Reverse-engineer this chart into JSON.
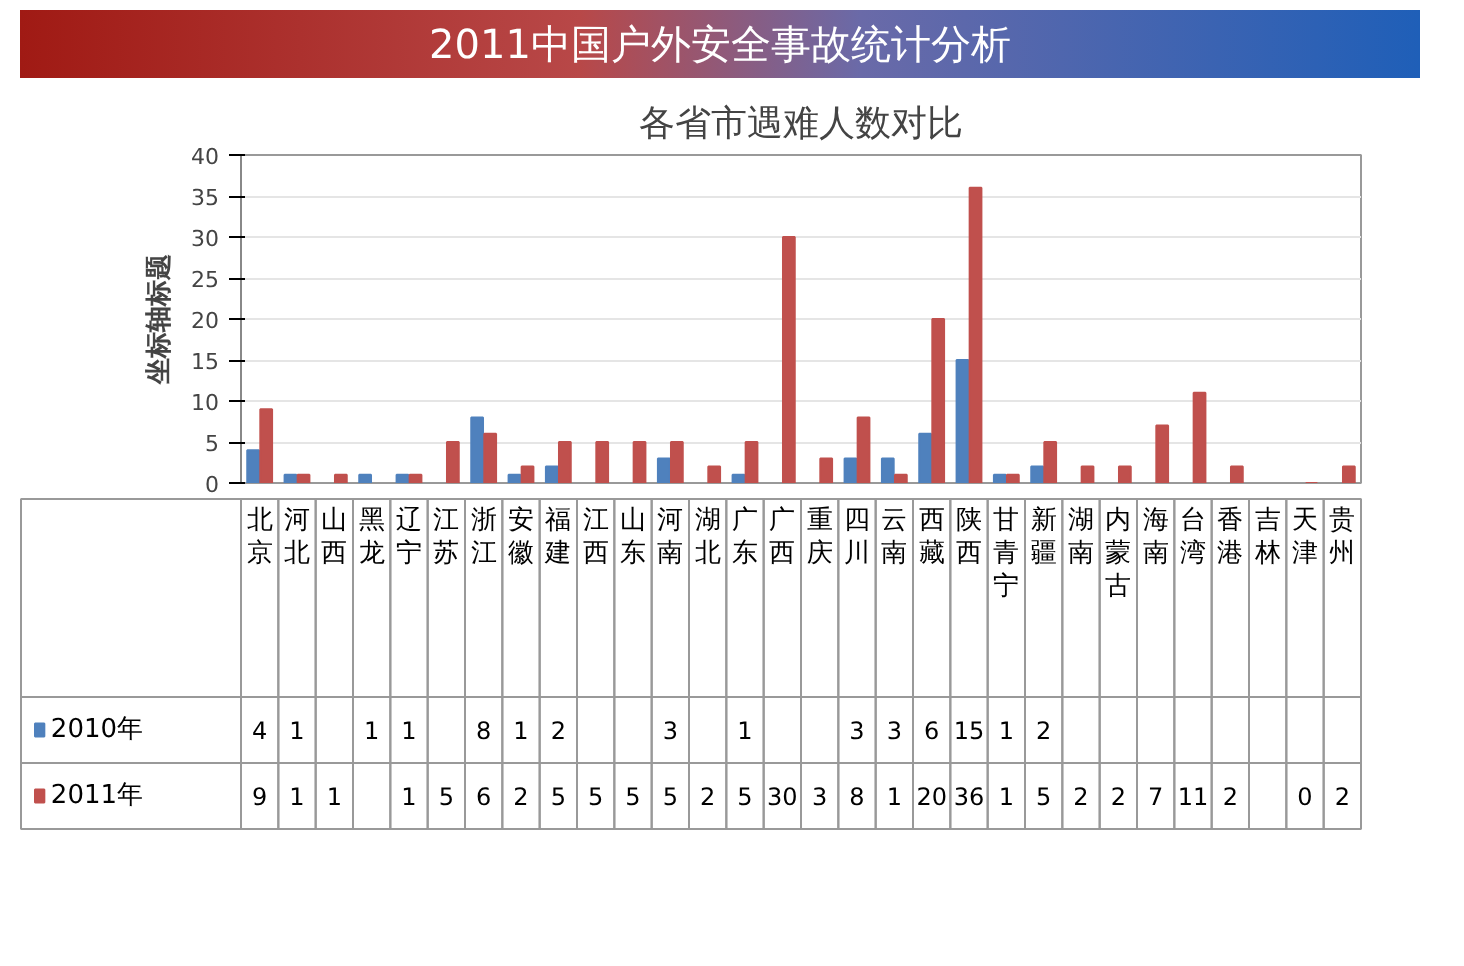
{
  "chart_data": {
    "type": "bar",
    "title": "2011中国户外安全事故统计分析",
    "subtitle": "各省市遇难人数对比",
    "ylabel": "坐标轴标题",
    "categories": [
      "北京",
      "河北",
      "山西",
      "黑龙",
      "辽宁",
      "江苏",
      "浙江",
      "安徽",
      "福建",
      "江西",
      "山东",
      "河南",
      "湖北",
      "广东",
      "广西",
      "重庆",
      "四川",
      "云南",
      "西藏",
      "陕西",
      "甘青宁",
      "新疆",
      "湖南",
      "内蒙古",
      "海南",
      "台湾",
      "香港",
      "吉林",
      "天津",
      "贵州"
    ],
    "series": [
      {
        "name": "2010年",
        "color": "#4f81bd",
        "values": [
          4,
          1,
          null,
          1,
          1,
          null,
          8,
          1,
          2,
          null,
          null,
          3,
          null,
          1,
          null,
          null,
          3,
          3,
          6,
          15,
          1,
          2,
          null,
          null,
          null,
          null,
          null,
          null,
          null,
          null
        ]
      },
      {
        "name": "2011年",
        "color": "#c0504d",
        "values": [
          9,
          1,
          1,
          null,
          1,
          5,
          6,
          2,
          5,
          5,
          5,
          5,
          2,
          5,
          30,
          3,
          8,
          1,
          20,
          36,
          1,
          5,
          2,
          2,
          7,
          11,
          2,
          null,
          0,
          2
        ]
      }
    ],
    "ylim": [
      0,
      40
    ],
    "yticks": [
      0,
      5,
      10,
      15,
      20,
      25,
      30,
      35,
      40
    ],
    "grid": "y",
    "data_labels": true,
    "legend": "bottom left"
  }
}
